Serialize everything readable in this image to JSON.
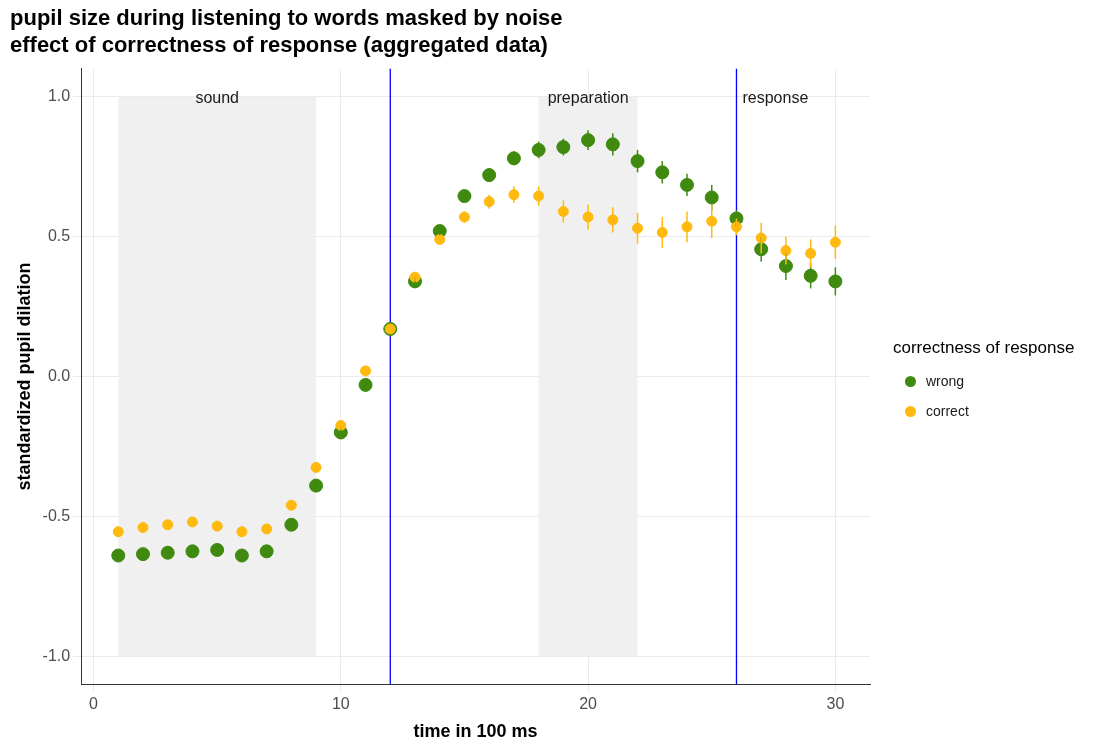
{
  "chart_data": {
    "type": "scatter",
    "title": "pupil size during listening to words masked by noise",
    "subtitle": "effect of correctness of response (aggregated data)",
    "xlabel": "time in 100 ms",
    "ylabel": "standardized pupil dilation",
    "legend_title": "correctness of response",
    "legend": "right",
    "grid": true,
    "marker": "circle",
    "x": [
      1,
      2,
      3,
      4,
      5,
      6,
      7,
      8,
      9,
      10,
      11,
      12,
      13,
      14,
      15,
      16,
      17,
      18,
      19,
      20,
      21,
      22,
      23,
      24,
      25,
      26,
      27,
      28,
      29,
      30
    ],
    "xlim": [
      -0.5,
      31.4
    ],
    "xticks": [
      0,
      10,
      20,
      30
    ],
    "ylim": [
      -1.1,
      1.1
    ],
    "yticks": [
      {
        "value": -1,
        "label": "-1.0"
      },
      {
        "value": -0.5,
        "label": "-0.5"
      },
      {
        "value": 0,
        "label": "0.0"
      },
      {
        "value": 0.5,
        "label": "0.5"
      },
      {
        "value": 1,
        "label": "1.0"
      }
    ],
    "series": [
      {
        "name": "wrong",
        "color": "#3f8a0f",
        "values": [
          -0.64,
          -0.635,
          -0.63,
          -0.625,
          -0.62,
          -0.64,
          -0.625,
          -0.53,
          -0.39,
          -0.2,
          -0.03,
          0.17,
          0.34,
          0.52,
          0.645,
          0.72,
          0.78,
          0.81,
          0.82,
          0.845,
          0.83,
          0.77,
          0.73,
          0.685,
          0.64,
          0.565,
          0.455,
          0.395,
          0.36,
          0.34
        ],
        "errors": [
          0.015,
          0.015,
          0.015,
          0.015,
          0.015,
          0.015,
          0.015,
          0.015,
          0.015,
          0.015,
          0.015,
          null,
          0.015,
          0.015,
          0.02,
          0.025,
          0.025,
          0.03,
          0.03,
          0.035,
          0.04,
          0.04,
          0.04,
          0.04,
          0.045,
          0.03,
          0.045,
          0.05,
          0.045,
          0.05
        ]
      },
      {
        "name": "correct",
        "color": "#ffb90f",
        "values": [
          -0.555,
          -0.54,
          -0.53,
          -0.52,
          -0.535,
          -0.555,
          -0.545,
          -0.46,
          -0.325,
          -0.175,
          0.02,
          0.17,
          0.355,
          0.49,
          0.57,
          0.625,
          0.65,
          0.645,
          0.59,
          0.57,
          0.56,
          0.53,
          0.515,
          0.535,
          0.555,
          0.535,
          0.495,
          0.45,
          0.44,
          0.48
        ],
        "errors": [
          0.01,
          0.01,
          0.01,
          0.01,
          0.01,
          0.01,
          0.01,
          0.01,
          0.01,
          0.015,
          0.015,
          null,
          0.015,
          0.015,
          0.02,
          0.025,
          0.03,
          0.035,
          0.04,
          0.045,
          0.045,
          0.055,
          0.055,
          0.055,
          0.06,
          0.03,
          0.055,
          0.05,
          0.05,
          0.06
        ]
      }
    ],
    "bands": [
      {
        "axis": "x",
        "from": 1,
        "to": 9,
        "label": "sound",
        "color": "#f0f0f0"
      },
      {
        "axis": "x",
        "from": 18,
        "to": 22,
        "label": "preparation",
        "color": "#f0f0f0"
      }
    ],
    "ref_lines": [
      {
        "axis": "x",
        "value": 12,
        "color": "#0000ff"
      },
      {
        "axis": "x",
        "value": 26,
        "label": "response",
        "color": "#0000ff"
      }
    ]
  }
}
